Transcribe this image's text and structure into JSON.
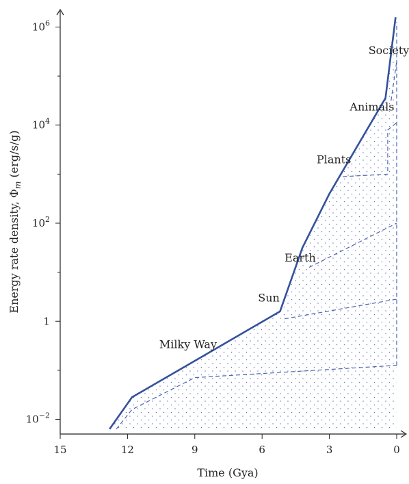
{
  "chart_data": {
    "type": "line",
    "title": "",
    "xlabel": "Time (Gya)",
    "ylabel": "Energy rate density, Φ_m (erg/s/g)",
    "x_direction": "reversed",
    "xlim": [
      15,
      0
    ],
    "ylim_log10": [
      -2.3,
      6.3
    ],
    "y_scale": "log",
    "grid": false,
    "legend": "none",
    "x_ticks": [
      {
        "value": 15,
        "label": "15"
      },
      {
        "value": 12,
        "label": "12"
      },
      {
        "value": 9,
        "label": "9"
      },
      {
        "value": 6,
        "label": "6"
      },
      {
        "value": 3,
        "label": "3"
      },
      {
        "value": 0,
        "label": "0"
      }
    ],
    "y_ticks": [
      {
        "log": -2,
        "base": "10",
        "exp": "−2",
        "label": ""
      },
      {
        "log": 0,
        "base": "",
        "exp": "",
        "label": "1"
      },
      {
        "log": 2,
        "base": "10",
        "exp": "2",
        "label": ""
      },
      {
        "log": 4,
        "base": "10",
        "exp": "4",
        "label": ""
      },
      {
        "log": 6,
        "base": "10",
        "exp": "6",
        "label": ""
      }
    ],
    "y_minor_ticks_log": [
      -1,
      1,
      3,
      5
    ],
    "series": [
      {
        "style": "solid",
        "x": [
          12.8,
          11.8,
          5.2,
          4.2,
          3.0,
          0.5,
          0.05
        ],
        "log_y": [
          -2.2,
          -1.55,
          0.2,
          1.5,
          2.6,
          4.55,
          6.2
        ]
      }
    ],
    "lower_bounds": [
      {
        "x": [
          12.5,
          11.8,
          9.0,
          0.0
        ],
        "log_y": [
          -2.2,
          -1.8,
          -1.15,
          -0.9
        ]
      },
      {
        "x": [
          5.0,
          0.0
        ],
        "log_y": [
          0.05,
          0.45
        ]
      },
      {
        "x": [
          3.9,
          0.0
        ],
        "log_y": [
          1.1,
          2.0
        ]
      },
      {
        "x": [
          2.4,
          0.4,
          0.4,
          0.0
        ],
        "log_y": [
          2.95,
          3.0,
          3.9,
          4.05
        ]
      },
      {
        "x": [
          0.25,
          0.0
        ],
        "log_y": [
          4.5,
          5.3
        ]
      }
    ],
    "annotations": [
      {
        "text": "Milky Way",
        "x": 9.3,
        "log_y": -0.55
      },
      {
        "text": "Sun",
        "x": 5.7,
        "log_y": 0.4
      },
      {
        "text": "Earth",
        "x": 4.3,
        "log_y": 1.22
      },
      {
        "text": "Plants",
        "x": 2.8,
        "log_y": 3.22
      },
      {
        "text": "Animals",
        "x": 1.1,
        "log_y": 4.3
      },
      {
        "text": "Society",
        "x": 0.35,
        "log_y": 5.45
      }
    ],
    "line_color": "#34519c",
    "dash_color": "#4c63b0",
    "dot_color": "#6277b8"
  }
}
